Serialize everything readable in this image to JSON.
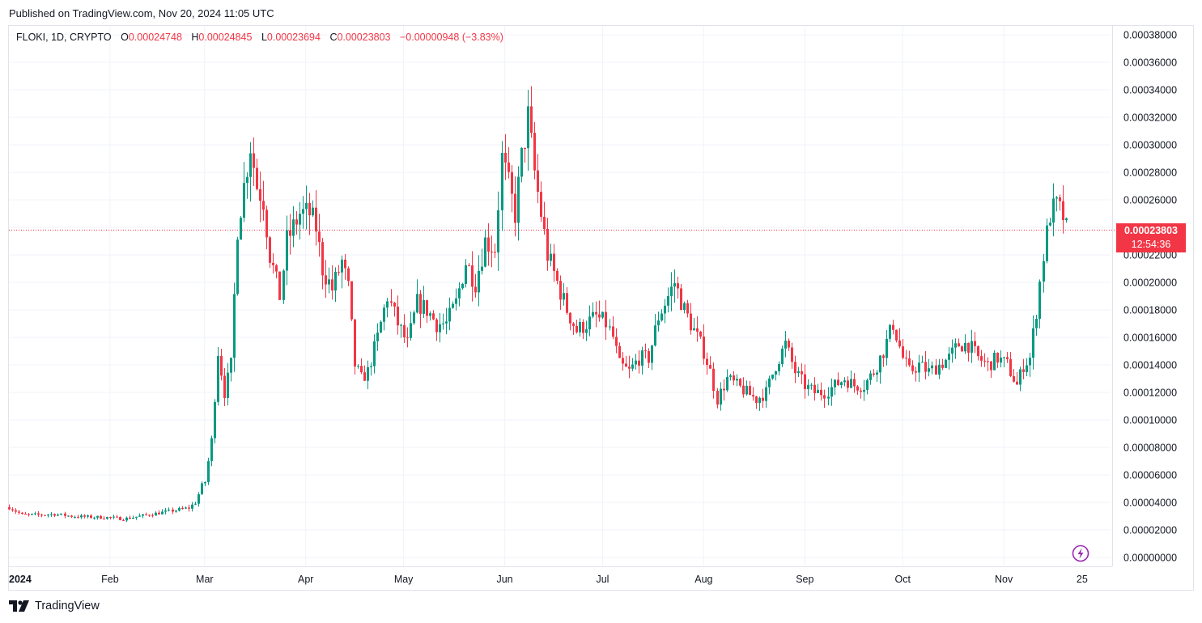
{
  "header": {
    "published": "Published on TradingView.com, Nov 20, 2024 11:05 UTC"
  },
  "legend": {
    "symbol": "FLOKI, 1D, CRYPTO",
    "o_label": "O",
    "o_value": "0.00024748",
    "h_label": "H",
    "h_value": "0.00024845",
    "l_label": "L",
    "l_value": "0.00023694",
    "c_label": "C",
    "c_value": "0.00023803",
    "change": "−0.00000948 (−3.83%)"
  },
  "price_tag": {
    "price": "0.00023803",
    "countdown": "12:54:36"
  },
  "footer": {
    "brand": "TradingView"
  },
  "colors": {
    "up": "#089981",
    "down": "#f23645",
    "grid": "#f0f3fa",
    "text": "#131722"
  },
  "icons": [
    "tradingview-logo-icon",
    "lightning-icon"
  ],
  "chart_data": {
    "type": "candlestick",
    "symbol": "FLOKI",
    "interval": "1D",
    "y_ticks": [
      "0.00000000",
      "0.00002000",
      "0.00004000",
      "0.00006000",
      "0.00008000",
      "0.00010000",
      "0.00012000",
      "0.00014000",
      "0.00016000",
      "0.00018000",
      "0.00020000",
      "0.00022000",
      "0.00024000",
      "0.00026000",
      "0.00028000",
      "0.00030000",
      "0.00032000",
      "0.00034000",
      "0.00036000",
      "0.00038000"
    ],
    "ylim": [
      0,
      0.00038
    ],
    "x_ticks": [
      {
        "label": "2024",
        "date": "2024-01-01"
      },
      {
        "label": "Feb",
        "date": "2024-02-01"
      },
      {
        "label": "Mar",
        "date": "2024-03-01"
      },
      {
        "label": "Apr",
        "date": "2024-04-01"
      },
      {
        "label": "May",
        "date": "2024-05-01"
      },
      {
        "label": "Jun",
        "date": "2024-06-01"
      },
      {
        "label": "Jul",
        "date": "2024-07-01"
      },
      {
        "label": "Aug",
        "date": "2024-08-01"
      },
      {
        "label": "Sep",
        "date": "2024-09-01"
      },
      {
        "label": "Oct",
        "date": "2024-10-01"
      },
      {
        "label": "Nov",
        "date": "2024-11-01"
      },
      {
        "label": "25",
        "date": "2024-11-25"
      }
    ],
    "last_price": 0.00023803,
    "series_close_anchors": [
      [
        "2024-01-01",
        3.65e-05
      ],
      [
        "2024-01-05",
        3.1e-05
      ],
      [
        "2024-01-10",
        3.1e-05
      ],
      [
        "2024-01-15",
        3.15e-05
      ],
      [
        "2024-01-20",
        3e-05
      ],
      [
        "2024-01-25",
        2.95e-05
      ],
      [
        "2024-02-01",
        2.9e-05
      ],
      [
        "2024-02-05",
        2.8e-05
      ],
      [
        "2024-02-10",
        3e-05
      ],
      [
        "2024-02-15",
        3.2e-05
      ],
      [
        "2024-02-20",
        3.4e-05
      ],
      [
        "2024-02-25",
        3.6e-05
      ],
      [
        "2024-02-27",
        4e-05
      ],
      [
        "2024-02-29",
        5.2e-05
      ],
      [
        "2024-03-01",
        5.5e-05
      ],
      [
        "2024-03-03",
        8.5e-05
      ],
      [
        "2024-03-05",
        0.00015
      ],
      [
        "2024-03-07",
        0.00012
      ],
      [
        "2024-03-09",
        0.00014
      ],
      [
        "2024-03-11",
        0.00024
      ],
      [
        "2024-03-13",
        0.00027
      ],
      [
        "2024-03-15",
        0.0003
      ],
      [
        "2024-03-17",
        0.00027
      ],
      [
        "2024-03-19",
        0.00026
      ],
      [
        "2024-03-21",
        0.00022
      ],
      [
        "2024-03-24",
        0.00019
      ],
      [
        "2024-03-26",
        0.00023
      ],
      [
        "2024-03-28",
        0.00024
      ],
      [
        "2024-03-30",
        0.00025
      ],
      [
        "2024-04-02",
        0.00025
      ],
      [
        "2024-04-04",
        0.00024
      ],
      [
        "2024-04-06",
        0.00021
      ],
      [
        "2024-04-09",
        0.000195
      ],
      [
        "2024-04-12",
        0.000215
      ],
      [
        "2024-04-14",
        0.000195
      ],
      [
        "2024-04-16",
        0.00014
      ],
      [
        "2024-04-18",
        0.00013
      ],
      [
        "2024-04-20",
        0.000135
      ],
      [
        "2024-04-23",
        0.00016
      ],
      [
        "2024-04-26",
        0.00019
      ],
      [
        "2024-04-29",
        0.00017
      ],
      [
        "2024-05-02",
        0.000155
      ],
      [
        "2024-05-05",
        0.000185
      ],
      [
        "2024-05-08",
        0.00018
      ],
      [
        "2024-05-11",
        0.00017
      ],
      [
        "2024-05-14",
        0.00017
      ],
      [
        "2024-05-17",
        0.000185
      ],
      [
        "2024-05-20",
        0.000215
      ],
      [
        "2024-05-23",
        0.0002
      ],
      [
        "2024-05-26",
        0.00023
      ],
      [
        "2024-05-29",
        0.000225
      ],
      [
        "2024-05-31",
        0.00029
      ],
      [
        "2024-06-02",
        0.00027
      ],
      [
        "2024-06-04",
        0.00025
      ],
      [
        "2024-06-06",
        0.00029
      ],
      [
        "2024-06-08",
        0.00032
      ],
      [
        "2024-06-10",
        0.00028
      ],
      [
        "2024-06-12",
        0.00025
      ],
      [
        "2024-06-14",
        0.00022
      ],
      [
        "2024-06-17",
        0.0002
      ],
      [
        "2024-06-20",
        0.00018
      ],
      [
        "2024-06-23",
        0.000165
      ],
      [
        "2024-06-26",
        0.00017
      ],
      [
        "2024-06-29",
        0.000175
      ],
      [
        "2024-07-02",
        0.00017
      ],
      [
        "2024-07-04",
        0.00016
      ],
      [
        "2024-07-06",
        0.00014
      ],
      [
        "2024-07-09",
        0.000135
      ],
      [
        "2024-07-12",
        0.000145
      ],
      [
        "2024-07-15",
        0.000145
      ],
      [
        "2024-07-18",
        0.000175
      ],
      [
        "2024-07-21",
        0.00019
      ],
      [
        "2024-07-23",
        0.0002
      ],
      [
        "2024-07-26",
        0.00018
      ],
      [
        "2024-07-29",
        0.000165
      ],
      [
        "2024-08-01",
        0.00015
      ],
      [
        "2024-08-03",
        0.000135
      ],
      [
        "2024-08-05",
        0.000115
      ],
      [
        "2024-08-08",
        0.00013
      ],
      [
        "2024-08-11",
        0.000125
      ],
      [
        "2024-08-14",
        0.00012
      ],
      [
        "2024-08-17",
        0.000115
      ],
      [
        "2024-08-20",
        0.00012
      ],
      [
        "2024-08-23",
        0.00014
      ],
      [
        "2024-08-26",
        0.000155
      ],
      [
        "2024-08-29",
        0.000135
      ],
      [
        "2024-09-01",
        0.000125
      ],
      [
        "2024-09-04",
        0.00012
      ],
      [
        "2024-09-07",
        0.00012
      ],
      [
        "2024-09-10",
        0.000125
      ],
      [
        "2024-09-13",
        0.00013
      ],
      [
        "2024-09-16",
        0.000125
      ],
      [
        "2024-09-19",
        0.000125
      ],
      [
        "2024-09-22",
        0.000135
      ],
      [
        "2024-09-25",
        0.00015
      ],
      [
        "2024-09-28",
        0.00017
      ],
      [
        "2024-10-01",
        0.000145
      ],
      [
        "2024-10-03",
        0.000135
      ],
      [
        "2024-10-06",
        0.00014
      ],
      [
        "2024-10-09",
        0.000135
      ],
      [
        "2024-10-12",
        0.00014
      ],
      [
        "2024-10-15",
        0.000145
      ],
      [
        "2024-10-18",
        0.000155
      ],
      [
        "2024-10-21",
        0.000155
      ],
      [
        "2024-10-24",
        0.000145
      ],
      [
        "2024-10-27",
        0.00014
      ],
      [
        "2024-10-30",
        0.000145
      ],
      [
        "2024-11-02",
        0.00014
      ],
      [
        "2024-11-05",
        0.000125
      ],
      [
        "2024-11-07",
        0.00014
      ],
      [
        "2024-11-09",
        0.000145
      ],
      [
        "2024-11-11",
        0.00018
      ],
      [
        "2024-11-13",
        0.00022
      ],
      [
        "2024-11-15",
        0.00025
      ],
      [
        "2024-11-17",
        0.000255
      ],
      [
        "2024-11-19",
        0.000248
      ],
      [
        "2024-11-20",
        0.00023803
      ]
    ]
  }
}
